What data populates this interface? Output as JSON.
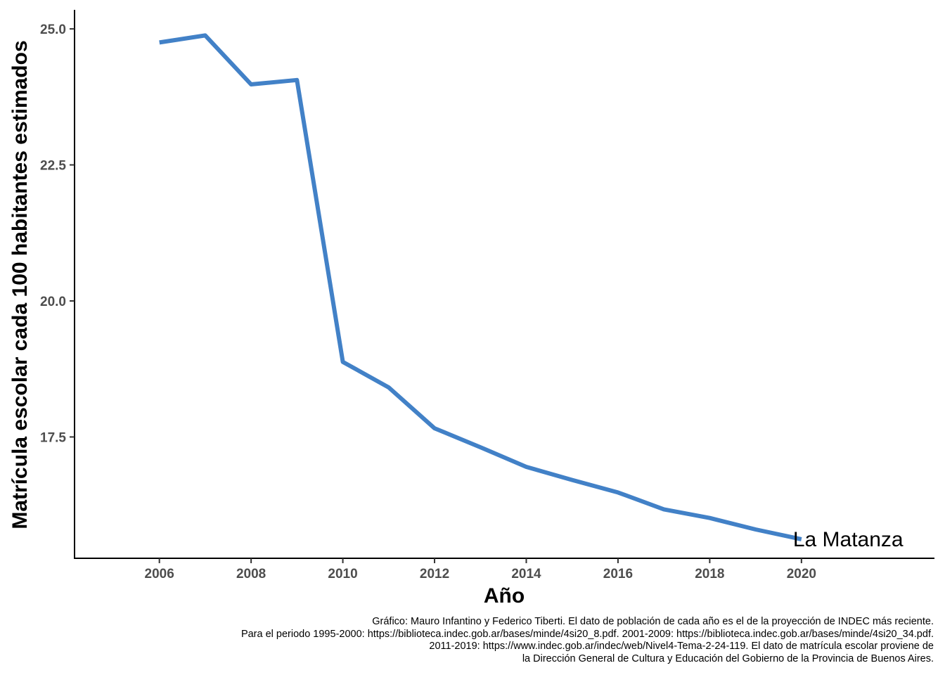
{
  "chart_data": {
    "type": "line",
    "title": "",
    "xlabel": "Año",
    "ylabel": "Matrícula escolar cada 100 habitantes estimados",
    "x": [
      2006,
      2007,
      2008,
      2009,
      2010,
      2011,
      2012,
      2013,
      2014,
      2015,
      2016,
      2017,
      2018,
      2019,
      2020
    ],
    "series": [
      {
        "name": "La Matanza",
        "color": "#4281c7",
        "values": [
          24.75,
          24.88,
          23.98,
          24.06,
          18.88,
          18.41,
          17.66,
          17.31,
          16.95,
          16.71,
          16.48,
          16.17,
          16.01,
          15.8,
          15.62
        ]
      }
    ],
    "xticks": [
      "2006",
      "2008",
      "2010",
      "2012",
      "2014",
      "2016",
      "2018",
      "2020"
    ],
    "yticks": [
      "17.5",
      "20.0",
      "22.5",
      "25.0"
    ],
    "xlim": [
      2004.15,
      2022.9
    ],
    "ylim": [
      15.27,
      25.35
    ],
    "grid": false,
    "legend": "none",
    "caption": [
      "Gráfico: Mauro Infantino y Federico Tiberti. El dato de población de cada año es el de la proyección de INDEC más reciente.",
      "Para el periodo 1995-2000: https://biblioteca.indec.gob.ar/bases/minde/4si20_8.pdf. 2001-2009: https://biblioteca.indec.gob.ar/bases/minde/4si20_34.pdf.",
      "2011-2019: https://www.indec.gob.ar/indec/web/Nivel4-Tema-2-24-119. El dato de matrícula escolar proviene de",
      "la Dirección General de Cultura y Educación del Gobierno de la Provincia de Buenos Aires."
    ]
  }
}
